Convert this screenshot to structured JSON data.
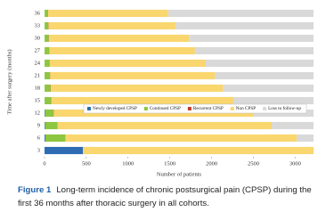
{
  "chart_data": {
    "type": "stacked-barh",
    "categories": [
      "3",
      "6",
      "9",
      "12",
      "15",
      "18",
      "21",
      "24",
      "27",
      "30",
      "33",
      "36"
    ],
    "y_label": "Time after surgery (months)",
    "x_label": "Number of patients",
    "series": [
      {
        "name": "Newly developed CPSP",
        "color": "#2e6db4",
        "values": [
          460,
          10,
          5,
          5,
          2,
          2,
          1,
          1,
          1,
          1,
          1,
          1
        ]
      },
      {
        "name": "Continued CPSP",
        "color": "#8dc63f",
        "values": [
          0,
          240,
          150,
          100,
          75,
          70,
          65,
          60,
          55,
          50,
          45,
          40
        ]
      },
      {
        "name": "Recurrent CPSP",
        "color": "#c0392b",
        "values": [
          0,
          0,
          0,
          5,
          3,
          3,
          2,
          2,
          2,
          2,
          2,
          2
        ]
      },
      {
        "name": "Non CPSP",
        "color": "#f9d66e",
        "values": [
          2760,
          2770,
          2565,
          2390,
          2180,
          2060,
          1972,
          1867,
          1742,
          1677,
          1522,
          1437
        ]
      },
      {
        "name": "Loss to follow-up",
        "color": "#d9d9d9",
        "values": [
          0,
          200,
          500,
          720,
          960,
          1085,
          1180,
          1290,
          1420,
          1490,
          1650,
          1740
        ]
      }
    ],
    "xlim": [
      0,
      3220
    ],
    "xticks": [
      0,
      500,
      1000,
      1500,
      2000,
      2500,
      3000
    ],
    "legend_position": "lower-right",
    "caption_label": "Figure 1",
    "caption": "Long-term incidence of chronic postsurgical pain (CPSP) during the first 36 months after thoracic surgery in all cohorts."
  }
}
